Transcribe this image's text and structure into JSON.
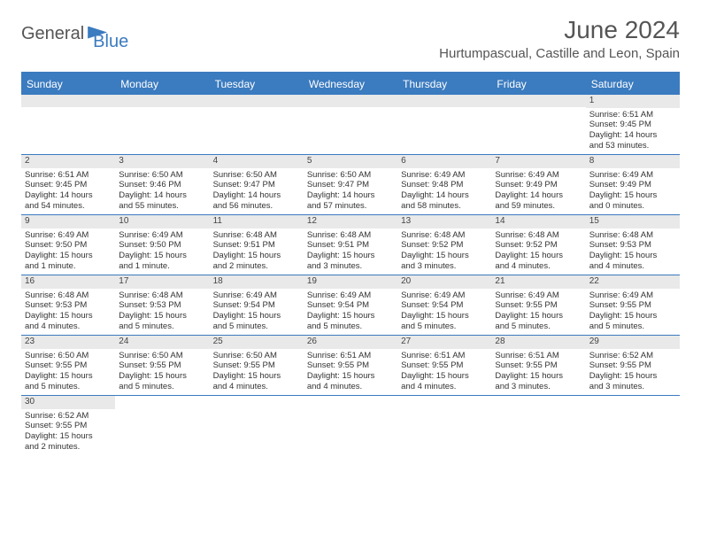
{
  "logo": {
    "part1": "General",
    "part2": "Blue"
  },
  "title": "June 2024",
  "location": "Hurtumpascual, Castille and Leon, Spain",
  "day_headers": [
    "Sunday",
    "Monday",
    "Tuesday",
    "Wednesday",
    "Thursday",
    "Friday",
    "Saturday"
  ],
  "colors": {
    "accent": "#3b7bbf",
    "header_bg": "#e9e9e9",
    "text": "#333333",
    "background": "#ffffff"
  },
  "weeks": [
    [
      null,
      null,
      null,
      null,
      null,
      null,
      {
        "n": "1",
        "sr": "Sunrise: 6:51 AM",
        "ss": "Sunset: 9:45 PM",
        "dl1": "Daylight: 14 hours",
        "dl2": "and 53 minutes."
      }
    ],
    [
      {
        "n": "2",
        "sr": "Sunrise: 6:51 AM",
        "ss": "Sunset: 9:45 PM",
        "dl1": "Daylight: 14 hours",
        "dl2": "and 54 minutes."
      },
      {
        "n": "3",
        "sr": "Sunrise: 6:50 AM",
        "ss": "Sunset: 9:46 PM",
        "dl1": "Daylight: 14 hours",
        "dl2": "and 55 minutes."
      },
      {
        "n": "4",
        "sr": "Sunrise: 6:50 AM",
        "ss": "Sunset: 9:47 PM",
        "dl1": "Daylight: 14 hours",
        "dl2": "and 56 minutes."
      },
      {
        "n": "5",
        "sr": "Sunrise: 6:50 AM",
        "ss": "Sunset: 9:47 PM",
        "dl1": "Daylight: 14 hours",
        "dl2": "and 57 minutes."
      },
      {
        "n": "6",
        "sr": "Sunrise: 6:49 AM",
        "ss": "Sunset: 9:48 PM",
        "dl1": "Daylight: 14 hours",
        "dl2": "and 58 minutes."
      },
      {
        "n": "7",
        "sr": "Sunrise: 6:49 AM",
        "ss": "Sunset: 9:49 PM",
        "dl1": "Daylight: 14 hours",
        "dl2": "and 59 minutes."
      },
      {
        "n": "8",
        "sr": "Sunrise: 6:49 AM",
        "ss": "Sunset: 9:49 PM",
        "dl1": "Daylight: 15 hours",
        "dl2": "and 0 minutes."
      }
    ],
    [
      {
        "n": "9",
        "sr": "Sunrise: 6:49 AM",
        "ss": "Sunset: 9:50 PM",
        "dl1": "Daylight: 15 hours",
        "dl2": "and 1 minute."
      },
      {
        "n": "10",
        "sr": "Sunrise: 6:49 AM",
        "ss": "Sunset: 9:50 PM",
        "dl1": "Daylight: 15 hours",
        "dl2": "and 1 minute."
      },
      {
        "n": "11",
        "sr": "Sunrise: 6:48 AM",
        "ss": "Sunset: 9:51 PM",
        "dl1": "Daylight: 15 hours",
        "dl2": "and 2 minutes."
      },
      {
        "n": "12",
        "sr": "Sunrise: 6:48 AM",
        "ss": "Sunset: 9:51 PM",
        "dl1": "Daylight: 15 hours",
        "dl2": "and 3 minutes."
      },
      {
        "n": "13",
        "sr": "Sunrise: 6:48 AM",
        "ss": "Sunset: 9:52 PM",
        "dl1": "Daylight: 15 hours",
        "dl2": "and 3 minutes."
      },
      {
        "n": "14",
        "sr": "Sunrise: 6:48 AM",
        "ss": "Sunset: 9:52 PM",
        "dl1": "Daylight: 15 hours",
        "dl2": "and 4 minutes."
      },
      {
        "n": "15",
        "sr": "Sunrise: 6:48 AM",
        "ss": "Sunset: 9:53 PM",
        "dl1": "Daylight: 15 hours",
        "dl2": "and 4 minutes."
      }
    ],
    [
      {
        "n": "16",
        "sr": "Sunrise: 6:48 AM",
        "ss": "Sunset: 9:53 PM",
        "dl1": "Daylight: 15 hours",
        "dl2": "and 4 minutes."
      },
      {
        "n": "17",
        "sr": "Sunrise: 6:48 AM",
        "ss": "Sunset: 9:53 PM",
        "dl1": "Daylight: 15 hours",
        "dl2": "and 5 minutes."
      },
      {
        "n": "18",
        "sr": "Sunrise: 6:49 AM",
        "ss": "Sunset: 9:54 PM",
        "dl1": "Daylight: 15 hours",
        "dl2": "and 5 minutes."
      },
      {
        "n": "19",
        "sr": "Sunrise: 6:49 AM",
        "ss": "Sunset: 9:54 PM",
        "dl1": "Daylight: 15 hours",
        "dl2": "and 5 minutes."
      },
      {
        "n": "20",
        "sr": "Sunrise: 6:49 AM",
        "ss": "Sunset: 9:54 PM",
        "dl1": "Daylight: 15 hours",
        "dl2": "and 5 minutes."
      },
      {
        "n": "21",
        "sr": "Sunrise: 6:49 AM",
        "ss": "Sunset: 9:55 PM",
        "dl1": "Daylight: 15 hours",
        "dl2": "and 5 minutes."
      },
      {
        "n": "22",
        "sr": "Sunrise: 6:49 AM",
        "ss": "Sunset: 9:55 PM",
        "dl1": "Daylight: 15 hours",
        "dl2": "and 5 minutes."
      }
    ],
    [
      {
        "n": "23",
        "sr": "Sunrise: 6:50 AM",
        "ss": "Sunset: 9:55 PM",
        "dl1": "Daylight: 15 hours",
        "dl2": "and 5 minutes."
      },
      {
        "n": "24",
        "sr": "Sunrise: 6:50 AM",
        "ss": "Sunset: 9:55 PM",
        "dl1": "Daylight: 15 hours",
        "dl2": "and 5 minutes."
      },
      {
        "n": "25",
        "sr": "Sunrise: 6:50 AM",
        "ss": "Sunset: 9:55 PM",
        "dl1": "Daylight: 15 hours",
        "dl2": "and 4 minutes."
      },
      {
        "n": "26",
        "sr": "Sunrise: 6:51 AM",
        "ss": "Sunset: 9:55 PM",
        "dl1": "Daylight: 15 hours",
        "dl2": "and 4 minutes."
      },
      {
        "n": "27",
        "sr": "Sunrise: 6:51 AM",
        "ss": "Sunset: 9:55 PM",
        "dl1": "Daylight: 15 hours",
        "dl2": "and 4 minutes."
      },
      {
        "n": "28",
        "sr": "Sunrise: 6:51 AM",
        "ss": "Sunset: 9:55 PM",
        "dl1": "Daylight: 15 hours",
        "dl2": "and 3 minutes."
      },
      {
        "n": "29",
        "sr": "Sunrise: 6:52 AM",
        "ss": "Sunset: 9:55 PM",
        "dl1": "Daylight: 15 hours",
        "dl2": "and 3 minutes."
      }
    ],
    [
      {
        "n": "30",
        "sr": "Sunrise: 6:52 AM",
        "ss": "Sunset: 9:55 PM",
        "dl1": "Daylight: 15 hours",
        "dl2": "and 2 minutes."
      },
      null,
      null,
      null,
      null,
      null,
      null
    ]
  ]
}
